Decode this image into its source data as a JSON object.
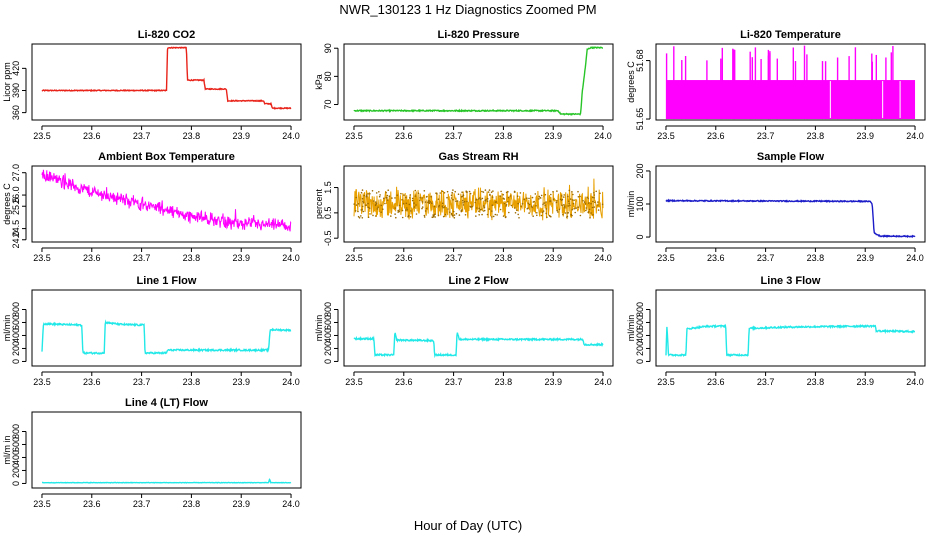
{
  "title": "NWR_130123  1 Hz Diagnostics Zoomed PM",
  "xlabel": "Hour of Day (UTC)",
  "colors": {
    "red": "#e8231a",
    "green": "#27c427",
    "magenta": "#ff00ff",
    "orange": "#e8a000",
    "blue": "#1c1cc8",
    "cyan": "#22e8e8",
    "axis": "#000000"
  },
  "chart_data": [
    {
      "type": "line",
      "title": "Li-820 CO2",
      "ylabel": "Licor ppm",
      "color": "red",
      "xlim": [
        23.48,
        24.02
      ],
      "ylim": [
        350,
        453
      ],
      "xticks": [
        23.5,
        23.6,
        23.7,
        23.8,
        23.9,
        24.0
      ],
      "xtick_labels": [
        "23.5",
        "23.6",
        "23.7",
        "23.8",
        "23.9",
        "24.0"
      ],
      "yticks": [
        360,
        390,
        420
      ],
      "ytick_labels": [
        "360",
        "390",
        "420"
      ],
      "noise": 0.6,
      "series_noise": 0,
      "points": [
        [
          23.5,
          390
        ],
        [
          23.75,
          390
        ],
        [
          23.752,
          448
        ],
        [
          23.79,
          448
        ],
        [
          23.792,
          404
        ],
        [
          23.825,
          404
        ],
        [
          23.828,
          392
        ],
        [
          23.87,
          392
        ],
        [
          23.873,
          376
        ],
        [
          23.945,
          376
        ],
        [
          23.947,
          372
        ],
        [
          23.96,
          372
        ],
        [
          23.962,
          366
        ],
        [
          24.0,
          366
        ]
      ]
    },
    {
      "type": "line",
      "title": "Li-820 Pressure",
      "ylabel": "kPa",
      "color": "green",
      "xlim": [
        23.48,
        24.02
      ],
      "ylim": [
        64.5,
        91.5
      ],
      "xticks": [
        23.5,
        23.6,
        23.7,
        23.8,
        23.9,
        24.0
      ],
      "xtick_labels": [
        "23.5",
        "23.6",
        "23.7",
        "23.8",
        "23.9",
        "24.0"
      ],
      "yticks": [
        70,
        80,
        90
      ],
      "ytick_labels": [
        "70",
        "80",
        "90"
      ],
      "noise": 0.2,
      "series_noise": 0,
      "points": [
        [
          23.5,
          67.8
        ],
        [
          23.91,
          67.8
        ],
        [
          23.915,
          66.6
        ],
        [
          23.955,
          66.6
        ],
        [
          23.958,
          74
        ],
        [
          23.965,
          84
        ],
        [
          23.968,
          89.5
        ],
        [
          23.975,
          90.2
        ],
        [
          24.0,
          90.2
        ]
      ]
    },
    {
      "type": "spikes",
      "title": "Li-820 Temperature",
      "ylabel": "degrees C",
      "color": "magenta",
      "xlim": [
        23.48,
        24.02
      ],
      "ylim": [
        51.6495,
        51.6885
      ],
      "xticks": [
        23.5,
        23.6,
        23.7,
        23.8,
        23.9,
        24.0
      ],
      "xtick_labels": [
        "23.5",
        "23.6",
        "23.7",
        "23.8",
        "23.9",
        "24.0"
      ],
      "yticks": [
        51.65,
        51.68
      ],
      "ytick_labels": [
        "51.65",
        "51.68"
      ],
      "base_low": 51.65,
      "base_high": 51.67,
      "spike_top": 51.688,
      "spike_count": 34
    },
    {
      "type": "noisy",
      "title": "Ambient Box Temperature",
      "ylabel": "degrees C",
      "color": "magenta",
      "xlim": [
        23.48,
        24.02
      ],
      "ylim": [
        23.9,
        27.3
      ],
      "xticks": [
        23.5,
        23.6,
        23.7,
        23.8,
        23.9,
        24.0
      ],
      "xtick_labels": [
        "23.5",
        "23.6",
        "23.7",
        "23.8",
        "23.9",
        "24.0"
      ],
      "yticks": [
        24.0,
        24.5,
        25.5,
        26.0,
        27.0
      ],
      "ytick_labels": [
        "24.0",
        "24.5",
        "25.5",
        "26.0",
        "27.0"
      ],
      "points": [
        [
          23.5,
          26.9
        ],
        [
          23.6,
          26.15
        ],
        [
          23.7,
          25.6
        ],
        [
          23.8,
          25.05
        ],
        [
          23.9,
          24.7
        ],
        [
          24.0,
          24.6
        ]
      ],
      "amplitude": 0.28
    },
    {
      "type": "noisy",
      "title": "Gas Stream RH",
      "ylabel": "percent",
      "color": "orange",
      "xlim": [
        23.48,
        24.02
      ],
      "ylim": [
        -0.65,
        2.35
      ],
      "xticks": [
        23.5,
        23.6,
        23.7,
        23.8,
        23.9,
        24.0
      ],
      "xtick_labels": [
        "23.5",
        "23.6",
        "23.7",
        "23.8",
        "23.9",
        "24.0"
      ],
      "yticks": [
        -0.5,
        0.5,
        1.5
      ],
      "ytick_labels": [
        "-0.5",
        "0.5",
        "1.5"
      ],
      "points": [
        [
          23.5,
          0.85
        ],
        [
          24.0,
          0.85
        ]
      ],
      "amplitude": 0.55
    },
    {
      "type": "line",
      "title": "Sample Flow",
      "ylabel": "ml/min",
      "color": "blue",
      "xlim": [
        23.48,
        24.02
      ],
      "ylim": [
        -15,
        215
      ],
      "xticks": [
        23.5,
        23.6,
        23.7,
        23.8,
        23.9,
        24.0
      ],
      "xtick_labels": [
        "23.5",
        "23.6",
        "23.7",
        "23.8",
        "23.9",
        "24.0"
      ],
      "yticks": [
        0,
        100,
        200
      ],
      "ytick_labels": [
        "0",
        "100",
        "200"
      ],
      "noise": 1.5,
      "series_noise": 0,
      "points": [
        [
          23.5,
          110
        ],
        [
          23.91,
          108
        ],
        [
          23.914,
          100
        ],
        [
          23.918,
          12
        ],
        [
          23.93,
          3
        ],
        [
          24.0,
          2
        ]
      ]
    },
    {
      "type": "line",
      "title": "Line 1 Flow",
      "ylabel": "ml/min",
      "color": "cyan",
      "xlim": [
        23.48,
        24.02
      ],
      "ylim": [
        -70,
        1100
      ],
      "xticks": [
        23.5,
        23.6,
        23.7,
        23.8,
        23.9,
        24.0
      ],
      "xtick_labels": [
        "23.5",
        "23.6",
        "23.7",
        "23.8",
        "23.9",
        "24.0"
      ],
      "yticks": [
        0,
        200,
        400,
        600,
        800
      ],
      "ytick_labels": [
        "0",
        "200",
        "400",
        "600",
        "800"
      ],
      "noise": 12,
      "series_noise": 0,
      "points": [
        [
          23.5,
          150
        ],
        [
          23.503,
          580
        ],
        [
          23.58,
          560
        ],
        [
          23.582,
          130
        ],
        [
          23.625,
          130
        ],
        [
          23.627,
          600
        ],
        [
          23.66,
          570
        ],
        [
          23.705,
          560
        ],
        [
          23.707,
          130
        ],
        [
          23.75,
          130
        ],
        [
          23.752,
          175
        ],
        [
          23.955,
          175
        ],
        [
          23.958,
          490
        ],
        [
          24.0,
          480
        ]
      ]
    },
    {
      "type": "line",
      "title": "Line 2 Flow",
      "ylabel": "ml/min",
      "color": "cyan",
      "xlim": [
        23.48,
        24.02
      ],
      "ylim": [
        -70,
        1100
      ],
      "xticks": [
        23.5,
        23.6,
        23.7,
        23.8,
        23.9,
        24.0
      ],
      "xtick_labels": [
        "23.5",
        "23.6",
        "23.7",
        "23.8",
        "23.9",
        "24.0"
      ],
      "yticks": [
        0,
        200,
        400,
        600,
        800
      ],
      "ytick_labels": [
        "0",
        "200",
        "400",
        "600",
        "800"
      ],
      "noise": 12,
      "series_noise": 0,
      "points": [
        [
          23.5,
          350
        ],
        [
          23.54,
          350
        ],
        [
          23.542,
          100
        ],
        [
          23.58,
          100
        ],
        [
          23.582,
          450
        ],
        [
          23.586,
          330
        ],
        [
          23.66,
          320
        ],
        [
          23.662,
          100
        ],
        [
          23.705,
          100
        ],
        [
          23.707,
          450
        ],
        [
          23.712,
          340
        ],
        [
          23.96,
          340
        ],
        [
          23.962,
          260
        ],
        [
          24.0,
          260
        ]
      ]
    },
    {
      "type": "line",
      "title": "Line 3 Flow",
      "ylabel": "ml/min",
      "color": "cyan",
      "xlim": [
        23.48,
        24.02
      ],
      "ylim": [
        -70,
        1100
      ],
      "xticks": [
        23.5,
        23.6,
        23.7,
        23.8,
        23.9,
        24.0
      ],
      "xtick_labels": [
        "23.5",
        "23.6",
        "23.7",
        "23.8",
        "23.9",
        "24.0"
      ],
      "yticks": [
        0,
        200,
        400,
        600,
        800
      ],
      "ytick_labels": [
        "0",
        "200",
        "400",
        "600",
        "800"
      ],
      "noise": 12,
      "series_noise": 0,
      "points": [
        [
          23.5,
          100
        ],
        [
          23.502,
          560
        ],
        [
          23.505,
          100
        ],
        [
          23.54,
          100
        ],
        [
          23.542,
          500
        ],
        [
          23.58,
          540
        ],
        [
          23.62,
          545
        ],
        [
          23.622,
          100
        ],
        [
          23.665,
          100
        ],
        [
          23.667,
          510
        ],
        [
          23.75,
          530
        ],
        [
          23.9,
          545
        ],
        [
          23.92,
          545
        ],
        [
          23.922,
          470
        ],
        [
          24.0,
          460
        ]
      ]
    },
    {
      "type": "line",
      "title": "Line 4 (LT) Flow",
      "ylabel": "ml/m in",
      "color": "cyan",
      "xlim": [
        23.48,
        24.02
      ],
      "ylim": [
        -70,
        1100
      ],
      "xticks": [
        23.5,
        23.6,
        23.7,
        23.8,
        23.9,
        24.0
      ],
      "xtick_labels": [
        "23.5",
        "23.6",
        "23.7",
        "23.8",
        "23.9",
        "24.0"
      ],
      "yticks": [
        0,
        200,
        400,
        600,
        800
      ],
      "ytick_labels": [
        "0",
        "200",
        "400",
        "600",
        "800"
      ],
      "noise": 3,
      "series_noise": 0,
      "points": [
        [
          23.5,
          12
        ],
        [
          23.955,
          12
        ],
        [
          23.957,
          70
        ],
        [
          23.959,
          12
        ],
        [
          24.0,
          12
        ]
      ]
    }
  ]
}
